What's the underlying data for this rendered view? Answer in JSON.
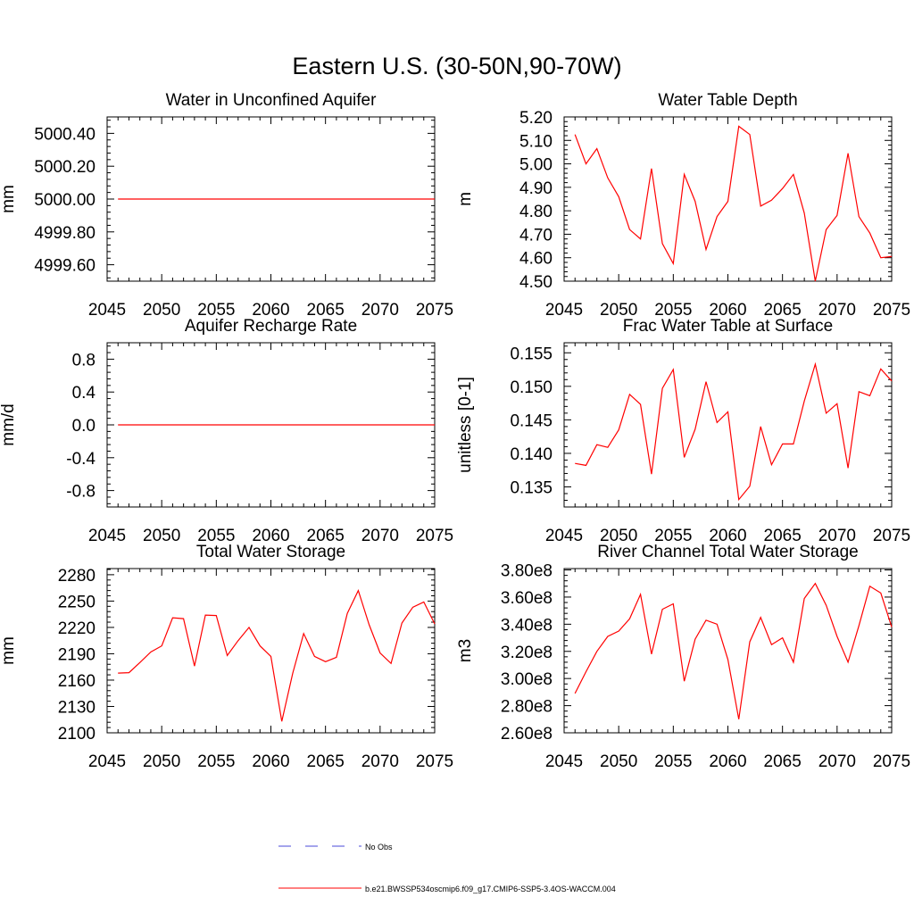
{
  "figure": {
    "title": "Eastern U.S. (30-50N,90-70W)",
    "legend": {
      "obs_label": "No Obs",
      "obs_color": "#4a4ad8",
      "model_label": "b.e21.BWSSP534oscmip6.f09_g17.CMIP6-SSP5-3.4OS-WACCM.004",
      "model_color": "#ff0000"
    }
  },
  "chart_data": [
    {
      "type": "line",
      "title": "Water in Unconfined Aquifer",
      "xlabel": "",
      "ylabel": "mm",
      "xlim": [
        2045,
        2075
      ],
      "ylim": [
        4999.5,
        5000.5
      ],
      "xticks": [
        2045,
        2050,
        2055,
        2060,
        2065,
        2070,
        2075
      ],
      "xtick_labels": [
        "2045",
        "2050",
        "2055",
        "2060",
        "2065",
        "2070",
        "2075"
      ],
      "yticks": [
        4999.6,
        4999.8,
        5000.0,
        5000.2,
        5000.4
      ],
      "ytick_labels": [
        "4999.60",
        "4999.80",
        "5000.00",
        "5000.20",
        "5000.40"
      ],
      "x": [
        2046,
        2047,
        2048,
        2049,
        2050,
        2051,
        2052,
        2053,
        2054,
        2055,
        2056,
        2057,
        2058,
        2059,
        2060,
        2061,
        2062,
        2063,
        2064,
        2065,
        2066,
        2067,
        2068,
        2069,
        2070,
        2071,
        2072,
        2073,
        2074,
        2075
      ],
      "series": [
        {
          "values": [
            5000,
            5000,
            5000,
            5000,
            5000,
            5000,
            5000,
            5000,
            5000,
            5000,
            5000,
            5000,
            5000,
            5000,
            5000,
            5000,
            5000,
            5000,
            5000,
            5000,
            5000,
            5000,
            5000,
            5000,
            5000,
            5000,
            5000,
            5000,
            5000,
            5000
          ]
        }
      ]
    },
    {
      "type": "line",
      "title": "Water Table Depth",
      "xlabel": "",
      "ylabel": "m",
      "xlim": [
        2045,
        2075
      ],
      "ylim": [
        4.5,
        5.2
      ],
      "xticks": [
        2045,
        2050,
        2055,
        2060,
        2065,
        2070,
        2075
      ],
      "xtick_labels": [
        "2045",
        "2050",
        "2055",
        "2060",
        "2065",
        "2070",
        "2075"
      ],
      "yticks": [
        4.5,
        4.6,
        4.7,
        4.8,
        4.9,
        5.0,
        5.1,
        5.2
      ],
      "ytick_labels": [
        "4.50",
        "4.60",
        "4.70",
        "4.80",
        "4.90",
        "5.00",
        "5.10",
        "5.20"
      ],
      "x": [
        2046,
        2047,
        2048,
        2049,
        2050,
        2051,
        2052,
        2053,
        2054,
        2055,
        2056,
        2057,
        2058,
        2059,
        2060,
        2061,
        2062,
        2063,
        2064,
        2065,
        2066,
        2067,
        2068,
        2069,
        2070,
        2071,
        2072,
        2073,
        2074,
        2075
      ],
      "series": [
        {
          "values": [
            5.125,
            5.0,
            5.065,
            4.94,
            4.86,
            4.72,
            4.68,
            4.98,
            4.66,
            4.575,
            4.955,
            4.84,
            4.635,
            4.775,
            4.84,
            5.16,
            5.125,
            4.82,
            4.845,
            4.895,
            4.955,
            4.79,
            4.5,
            4.72,
            4.78,
            5.045,
            4.775,
            4.705,
            4.6,
            4.605
          ]
        }
      ]
    },
    {
      "type": "line",
      "title": "Aquifer Recharge Rate",
      "xlabel": "",
      "ylabel": "mm/d",
      "xlim": [
        2045,
        2075
      ],
      "ylim": [
        -1,
        1
      ],
      "xticks": [
        2045,
        2050,
        2055,
        2060,
        2065,
        2070,
        2075
      ],
      "xtick_labels": [
        "2045",
        "2050",
        "2055",
        "2060",
        "2065",
        "2070",
        "2075"
      ],
      "yticks": [
        -0.8,
        -0.4,
        0.0,
        0.4,
        0.8
      ],
      "ytick_labels": [
        "-0.8",
        "-0.4",
        "0.0",
        "0.4",
        "0.8"
      ],
      "x": [
        2046,
        2047,
        2048,
        2049,
        2050,
        2051,
        2052,
        2053,
        2054,
        2055,
        2056,
        2057,
        2058,
        2059,
        2060,
        2061,
        2062,
        2063,
        2064,
        2065,
        2066,
        2067,
        2068,
        2069,
        2070,
        2071,
        2072,
        2073,
        2074,
        2075
      ],
      "series": [
        {
          "values": [
            0,
            0,
            0,
            0,
            0,
            0,
            0,
            0,
            0,
            0,
            0,
            0,
            0,
            0,
            0,
            0,
            0,
            0,
            0,
            0,
            0,
            0,
            0,
            0,
            0,
            0,
            0,
            0,
            0,
            0
          ]
        }
      ]
    },
    {
      "type": "line",
      "title": "Frac Water Table at Surface",
      "xlabel": "",
      "ylabel": "unitless [0-1]",
      "xlim": [
        2045,
        2075
      ],
      "ylim": [
        0.132,
        0.1565
      ],
      "xticks": [
        2045,
        2050,
        2055,
        2060,
        2065,
        2070,
        2075
      ],
      "xtick_labels": [
        "2045",
        "2050",
        "2055",
        "2060",
        "2065",
        "2070",
        "2075"
      ],
      "yticks": [
        0.135,
        0.14,
        0.145,
        0.15,
        0.155
      ],
      "ytick_labels": [
        "0.135",
        "0.140",
        "0.145",
        "0.150",
        "0.155"
      ],
      "x": [
        2046,
        2047,
        2048,
        2049,
        2050,
        2051,
        2052,
        2053,
        2054,
        2055,
        2056,
        2057,
        2058,
        2059,
        2060,
        2061,
        2062,
        2063,
        2064,
        2065,
        2066,
        2067,
        2068,
        2069,
        2070,
        2071,
        2072,
        2073,
        2074,
        2075
      ],
      "series": [
        {
          "values": [
            0.1385,
            0.1382,
            0.1413,
            0.1409,
            0.1435,
            0.1488,
            0.1473,
            0.1369,
            0.1497,
            0.1525,
            0.1394,
            0.1436,
            0.1507,
            0.1446,
            0.1462,
            0.1331,
            0.1351,
            0.144,
            0.1383,
            0.1414,
            0.1414,
            0.1478,
            0.1533,
            0.146,
            0.1474,
            0.1378,
            0.1492,
            0.1486,
            0.1526,
            0.1508
          ]
        }
      ]
    },
    {
      "type": "line",
      "title": "Total Water Storage",
      "xlabel": "",
      "ylabel": "mm",
      "xlim": [
        2045,
        2075
      ],
      "ylim": [
        2100,
        2287
      ],
      "xticks": [
        2045,
        2050,
        2055,
        2060,
        2065,
        2070,
        2075
      ],
      "xtick_labels": [
        "2045",
        "2050",
        "2055",
        "2060",
        "2065",
        "2070",
        "2075"
      ],
      "yticks": [
        2100,
        2130,
        2160,
        2190,
        2220,
        2250,
        2280
      ],
      "ytick_labels": [
        "2100",
        "2130",
        "2160",
        "2190",
        "2220",
        "2250",
        "2280"
      ],
      "x": [
        2046,
        2047,
        2048,
        2049,
        2050,
        2051,
        2052,
        2053,
        2054,
        2055,
        2056,
        2057,
        2058,
        2059,
        2060,
        2061,
        2062,
        2063,
        2064,
        2065,
        2066,
        2067,
        2068,
        2069,
        2070,
        2071,
        2072,
        2073,
        2074,
        2075
      ],
      "series": [
        {
          "values": [
            2168,
            2168.5,
            2180,
            2192,
            2199,
            2231,
            2230,
            2176,
            2234,
            2233.5,
            2188,
            2205,
            2220,
            2199,
            2187,
            2113,
            2168,
            2213,
            2187,
            2181,
            2186,
            2236,
            2262,
            2223,
            2191,
            2179,
            2225,
            2243,
            2249,
            2224
          ]
        }
      ]
    },
    {
      "type": "line",
      "title": "River Channel Total Water Storage",
      "xlabel": "",
      "ylabel": "m3",
      "xlim": [
        2045,
        2075
      ],
      "ylim": [
        260000000,
        381000000
      ],
      "xticks": [
        2045,
        2050,
        2055,
        2060,
        2065,
        2070,
        2075
      ],
      "xtick_labels": [
        "2045",
        "2050",
        "2055",
        "2060",
        "2065",
        "2070",
        "2075"
      ],
      "yticks": [
        260000000,
        280000000,
        300000000,
        320000000,
        340000000,
        360000000,
        380000000
      ],
      "ytick_labels": [
        "2.60e8",
        "2.80e8",
        "3.00e8",
        "3.20e8",
        "3.40e8",
        "3.60e8",
        "3.80e8"
      ],
      "x": [
        2046,
        2047,
        2048,
        2049,
        2050,
        2051,
        2052,
        2053,
        2054,
        2055,
        2056,
        2057,
        2058,
        2059,
        2060,
        2061,
        2062,
        2063,
        2064,
        2065,
        2066,
        2067,
        2068,
        2069,
        2070,
        2071,
        2072,
        2073,
        2074,
        2075
      ],
      "series": [
        {
          "values": [
            289000000,
            305000000,
            320000000,
            331000000,
            335000000,
            344000000,
            362000000,
            318000000,
            351000000,
            355000000,
            298000000,
            329000000,
            343000000,
            340000000,
            314000000,
            270000000,
            327000000,
            345000000,
            325000000,
            330000000,
            312000000,
            359000000,
            370000000,
            354000000,
            331000000,
            312000000,
            339000000,
            368000000,
            363000000,
            338000000
          ]
        }
      ]
    }
  ]
}
